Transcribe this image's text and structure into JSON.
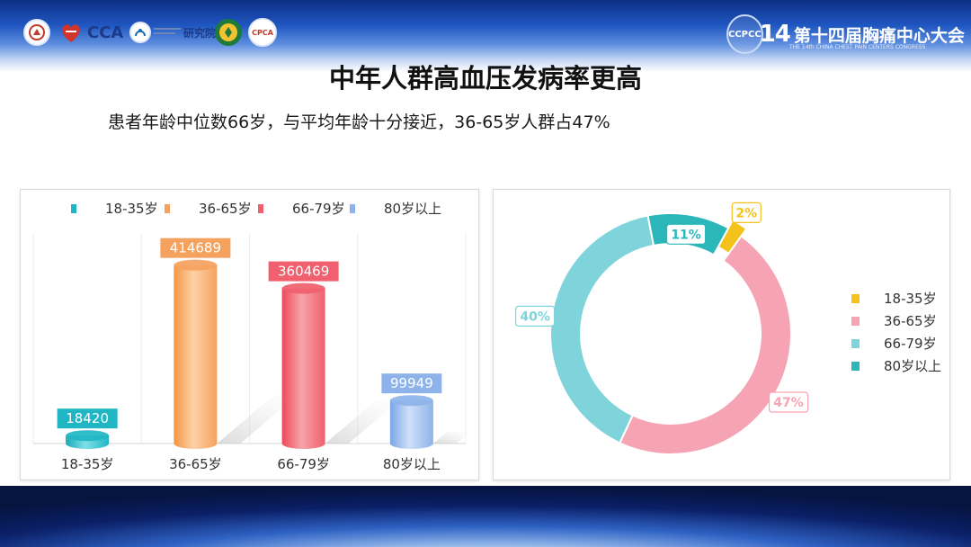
{
  "header": {
    "logos": [
      {
        "name": "org-seal-logo",
        "text": ""
      },
      {
        "name": "cca-logo",
        "text": "CCA"
      },
      {
        "name": "institute-logo",
        "text": "研究院"
      },
      {
        "name": "green-seal-logo",
        "text": ""
      },
      {
        "name": "cpca-logo",
        "text": "CPCA"
      }
    ],
    "brand": {
      "abbr": "CCPCC",
      "number": "14",
      "title": "第十四届胸痛中心大会",
      "subtitle": "THE 14th CHINA CHEST PAIN CENTERS CONGRESS"
    }
  },
  "title": "中年人群高血压发病率更高",
  "subtitle": "患者年龄中位数66岁，与平均年龄十分接近，36-65岁人群占47%",
  "colors": {
    "c1": "#20b6c3",
    "c2": "#f5a25f",
    "c3": "#f0606e",
    "c4": "#8db3ea",
    "d1": "#f5c21b",
    "d2": "#f6a3b4",
    "d3": "#7fd3db",
    "d4": "#2bb7b9"
  },
  "chart_data": [
    {
      "type": "bar",
      "categories": [
        "18-35岁",
        "36-65岁",
        "66-79岁",
        "80岁以上"
      ],
      "values": [
        18420,
        414689,
        360469,
        99949
      ],
      "data_labels": [
        "18420",
        "414689",
        "360469",
        "99949"
      ],
      "legend": [
        "18-35岁",
        "36-65岁",
        "66-79岁",
        "80岁以上"
      ],
      "legend_position": "top",
      "ylim": [
        0,
        460000
      ],
      "grid": true
    },
    {
      "type": "pie",
      "variant": "donut",
      "labels": [
        "18-35岁",
        "36-65岁",
        "66-79岁",
        "80岁以上"
      ],
      "values": [
        2,
        47,
        40,
        11
      ],
      "data_labels": [
        "2%",
        "47%",
        "40%",
        "11%"
      ],
      "legend_position": "right"
    }
  ]
}
